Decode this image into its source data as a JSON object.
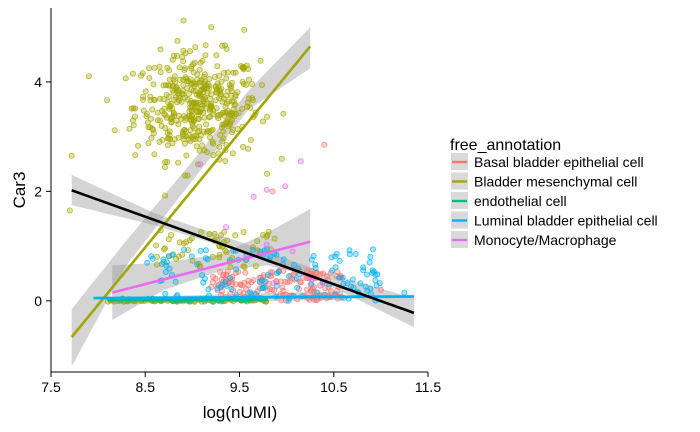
{
  "chart_data": {
    "type": "scatter",
    "xlabel": "log(nUMI)",
    "ylabel": "Car3",
    "xlim": [
      7.5,
      11.5
    ],
    "ylim": [
      -1.3,
      5.35
    ],
    "xticks": [
      7.5,
      8.5,
      9.5,
      10.5,
      11.5
    ],
    "xtick_labels": [
      "7.5",
      "8.5",
      "9.5",
      "10.5",
      "11.5"
    ],
    "yticks": [
      0,
      2,
      4
    ],
    "ytick_labels": [
      "0",
      "2",
      "4"
    ],
    "grid": false,
    "legend": {
      "title": "free_annotation",
      "position": "right"
    },
    "series": [
      {
        "name": "Basal bladder epithelial cell",
        "color": "#F8766D"
      },
      {
        "name": "Bladder mesenchymal cell",
        "color": "#A3A500"
      },
      {
        "name": "endothelial cell",
        "color": "#00BF7D"
      },
      {
        "name": "Luminal bladder epithelial cell",
        "color": "#00B0F6"
      },
      {
        "name": "Monocyte/Macrophage",
        "color": "#E76BF3"
      }
    ],
    "trend_lines": [
      {
        "series": "Bladder mesenchymal cell",
        "color": "#A3A500",
        "x": [
          7.72,
          10.25
        ],
        "y": [
          -0.66,
          4.65
        ],
        "band": {
          "x": [
            7.72,
            8.3,
            9.0,
            9.6,
            10.25
          ],
          "lo": [
            -1.2,
            0.65,
            2.2,
            3.5,
            4.25
          ],
          "hi": [
            -0.15,
            1.1,
            2.55,
            3.85,
            5.0
          ]
        }
      },
      {
        "series": "Monocyte/Macrophage",
        "color": "#E76BF3",
        "x": [
          8.15,
          10.25
        ],
        "y": [
          0.15,
          1.08
        ],
        "band": {
          "x": [
            8.15,
            8.7,
            9.3,
            9.8,
            10.25
          ],
          "lo": [
            -0.35,
            0.2,
            0.55,
            0.65,
            0.45
          ],
          "hi": [
            0.65,
            0.7,
            0.85,
            1.25,
            1.68
          ]
        }
      },
      {
        "series": "Basal bladder epithelial cell",
        "color": "#F8766D",
        "x": [
          8.15,
          10.6
        ],
        "y": [
          0.0,
          0.1
        ],
        "band": {
          "x": [
            8.15,
            10.6
          ],
          "lo": [
            -0.06,
            0.02
          ],
          "hi": [
            0.06,
            0.18
          ]
        }
      },
      {
        "series": "endothelial cell",
        "color": "#00BF7D",
        "x": [
          8.1,
          9.8
        ],
        "y": [
          0.01,
          0.02
        ],
        "band": {
          "x": [
            8.1,
            9.8
          ],
          "lo": [
            -0.03,
            -0.02
          ],
          "hi": [
            0.05,
            0.06
          ]
        }
      },
      {
        "series": "Luminal bladder epithelial cell",
        "color": "#00B0F6",
        "x": [
          7.95,
          11.35
        ],
        "y": [
          0.05,
          0.08
        ],
        "band": {
          "x": [
            7.95,
            11.35
          ],
          "lo": [
            0.03,
            0.05
          ],
          "hi": [
            0.07,
            0.11
          ]
        }
      },
      {
        "series": "overall",
        "color": "#000000",
        "x": [
          7.72,
          11.35
        ],
        "y": [
          2.02,
          -0.22
        ],
        "band": {
          "x": [
            7.72,
            8.6,
            9.5,
            10.4,
            11.35
          ],
          "lo": [
            1.75,
            1.38,
            0.9,
            0.32,
            -0.48
          ],
          "hi": [
            2.3,
            1.6,
            1.08,
            0.52,
            0.05
          ]
        }
      }
    ],
    "clusters": [
      {
        "series": "Bladder mesenchymal cell",
        "count": 430,
        "x": [
          9.05,
          0.33
        ],
        "y": [
          3.55,
          0.48
        ],
        "noise": "gauss"
      },
      {
        "series": "Bladder mesenchymal cell",
        "count": 60,
        "x": [
          8.6,
          9.9
        ],
        "y": [
          0.6,
          1.3
        ],
        "noise": "uniform"
      },
      {
        "series": "Bladder mesenchymal cell",
        "count": 70,
        "x": [
          8.1,
          9.8
        ],
        "y": [
          -0.02,
          0.02
        ],
        "noise": "uniform"
      },
      {
        "series": "Basal bladder epithelial cell",
        "count": 160,
        "x": [
          9.2,
          10.6
        ],
        "y": [
          0.0,
          0.55
        ],
        "noise": "uniform"
      },
      {
        "series": "Luminal bladder epithelial cell",
        "count": 130,
        "x": [
          8.5,
          11.0
        ],
        "y": [
          0.0,
          0.95
        ],
        "noise": "uniform"
      },
      {
        "series": "endothelial cell",
        "count": 40,
        "x": [
          8.2,
          9.8
        ],
        "y": [
          -0.02,
          0.05
        ],
        "noise": "uniform"
      },
      {
        "series": "Monocyte/Macrophage",
        "count": 10,
        "x": [
          8.5,
          10.4
        ],
        "y": [
          0.2,
          2.6
        ],
        "noise": "uniform"
      }
    ],
    "points": [
      {
        "series": "Bladder mesenchymal cell",
        "x": 7.72,
        "y": 2.65
      },
      {
        "series": "Bladder mesenchymal cell",
        "x": 7.7,
        "y": 1.65
      },
      {
        "series": "Bladder mesenchymal cell",
        "x": 9.2,
        "y": 5.0
      },
      {
        "series": "Bladder mesenchymal cell",
        "x": 9.55,
        "y": 4.95
      },
      {
        "series": "Basal bladder epithelial cell",
        "x": 10.4,
        "y": 2.85
      },
      {
        "series": "Basal bladder epithelial cell",
        "x": 9.85,
        "y": 2.0
      },
      {
        "series": "Basal bladder epithelial cell",
        "x": 11.0,
        "y": 0.2
      },
      {
        "series": "Luminal bladder epithelial cell",
        "x": 11.25,
        "y": 0.15
      },
      {
        "series": "Monocyte/Macrophage",
        "x": 10.15,
        "y": 2.55
      },
      {
        "series": "Monocyte/Macrophage",
        "x": 9.65,
        "y": 1.9
      }
    ]
  }
}
